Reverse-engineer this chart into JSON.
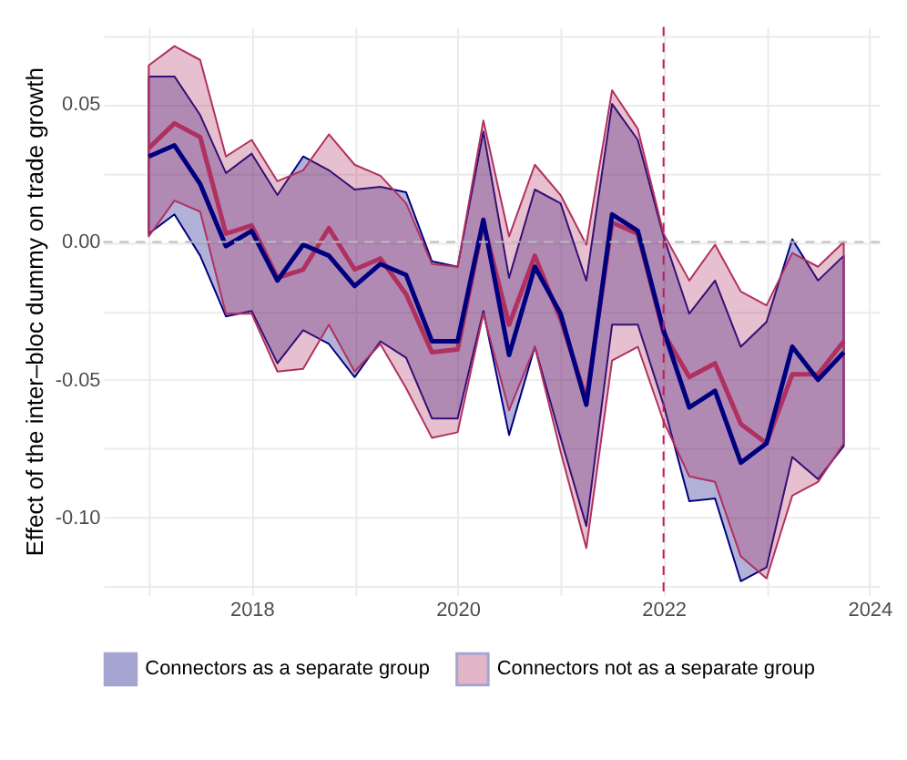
{
  "chart_data": {
    "type": "line",
    "ylabel": "Effect of the inter–bloc dummy on trade growth",
    "x": [
      2017,
      2017.25,
      2017.5,
      2017.75,
      2018,
      2018.25,
      2018.5,
      2018.75,
      2019,
      2019.25,
      2019.5,
      2019.75,
      2020,
      2020.25,
      2020.5,
      2020.75,
      2021,
      2021.25,
      2021.5,
      2021.75,
      2022,
      2022.25,
      2022.5,
      2022.75,
      2023,
      2023.25,
      2023.5,
      2023.75
    ],
    "series": [
      {
        "name": "Connectors as a separate group",
        "color": "#00007f",
        "values": [
          0.031,
          0.035,
          0.021,
          -0.0015,
          0.004,
          -0.014,
          -0.001,
          -0.005,
          -0.016,
          -0.008,
          -0.012,
          -0.036,
          -0.036,
          0.008,
          -0.041,
          -0.009,
          -0.026,
          -0.059,
          0.01,
          0.004,
          -0.032,
          -0.06,
          -0.054,
          -0.08,
          -0.073,
          -0.038,
          -0.05,
          -0.04
        ],
        "lower": [
          0.003,
          0.01,
          -0.005,
          -0.027,
          -0.025,
          -0.044,
          -0.032,
          -0.037,
          -0.049,
          -0.036,
          -0.042,
          -0.064,
          -0.064,
          -0.025,
          -0.07,
          -0.038,
          -0.071,
          -0.103,
          -0.03,
          -0.03,
          -0.059,
          -0.094,
          -0.093,
          -0.123,
          -0.118,
          -0.078,
          -0.086,
          -0.074
        ],
        "upper": [
          0.06,
          0.06,
          0.046,
          0.025,
          0.032,
          0.017,
          0.031,
          0.026,
          0.019,
          0.02,
          0.018,
          -0.007,
          -0.009,
          0.04,
          -0.013,
          0.019,
          0.014,
          -0.014,
          0.05,
          0.037,
          0.002,
          -0.026,
          -0.014,
          -0.038,
          -0.029,
          0.001,
          -0.014,
          -0.005
        ]
      },
      {
        "name": "Connectors not as a separate group",
        "color": "#b03060",
        "values": [
          0.034,
          0.043,
          0.038,
          0.003,
          0.006,
          -0.013,
          -0.01,
          0.005,
          -0.01,
          -0.006,
          -0.019,
          -0.04,
          -0.039,
          0.007,
          -0.03,
          -0.005,
          -0.028,
          -0.057,
          0.007,
          0.003,
          -0.033,
          -0.049,
          -0.044,
          -0.066,
          -0.073,
          -0.048,
          -0.048,
          -0.036
        ],
        "lower": [
          0.002,
          0.015,
          0.011,
          -0.026,
          -0.026,
          -0.047,
          -0.046,
          -0.03,
          -0.047,
          -0.037,
          -0.053,
          -0.071,
          -0.069,
          -0.026,
          -0.061,
          -0.038,
          -0.076,
          -0.111,
          -0.043,
          -0.038,
          -0.065,
          -0.085,
          -0.087,
          -0.114,
          -0.122,
          -0.092,
          -0.087,
          -0.073
        ],
        "upper": [
          0.064,
          0.071,
          0.066,
          0.031,
          0.037,
          0.022,
          0.026,
          0.039,
          0.028,
          0.024,
          0.014,
          -0.008,
          -0.009,
          0.044,
          0.002,
          0.028,
          0.017,
          -0.001,
          0.055,
          0.041,
          0.003,
          -0.014,
          -0.001,
          -0.018,
          -0.023,
          -0.004,
          -0.009,
          0.0
        ]
      }
    ],
    "xlim": [
      2016.56,
      2024.1
    ],
    "xticks": [
      {
        "value": 2017,
        "label": null
      },
      2018,
      {
        "value": 2019,
        "label": null
      },
      2020,
      {
        "value": 2021,
        "label": null
      },
      2022,
      {
        "value": 2023,
        "label": null
      },
      2024
    ],
    "ylim": [
      -0.128,
      0.078
    ],
    "yticks": [
      {
        "value": -0.125,
        "label": null
      },
      {
        "value": -0.1,
        "label": "-0.10"
      },
      {
        "value": -0.075,
        "label": null
      },
      {
        "value": -0.05,
        "label": "-0.05"
      },
      {
        "value": -0.025,
        "label": null
      },
      {
        "value": 0,
        "label": "0.00"
      },
      {
        "value": 0.025,
        "label": null
      },
      0.05,
      {
        "value": 0.075,
        "label": null
      }
    ],
    "ref_lines": [
      {
        "axis": "y",
        "value": 0,
        "color": "#bbbbbb",
        "line_style": "dashed"
      },
      {
        "axis": "x",
        "value": 2022,
        "color": "#c2185b",
        "line_style": "dashed"
      }
    ],
    "grid": true,
    "legend": "bottom",
    "line_style": "solid",
    "marker": "none"
  }
}
